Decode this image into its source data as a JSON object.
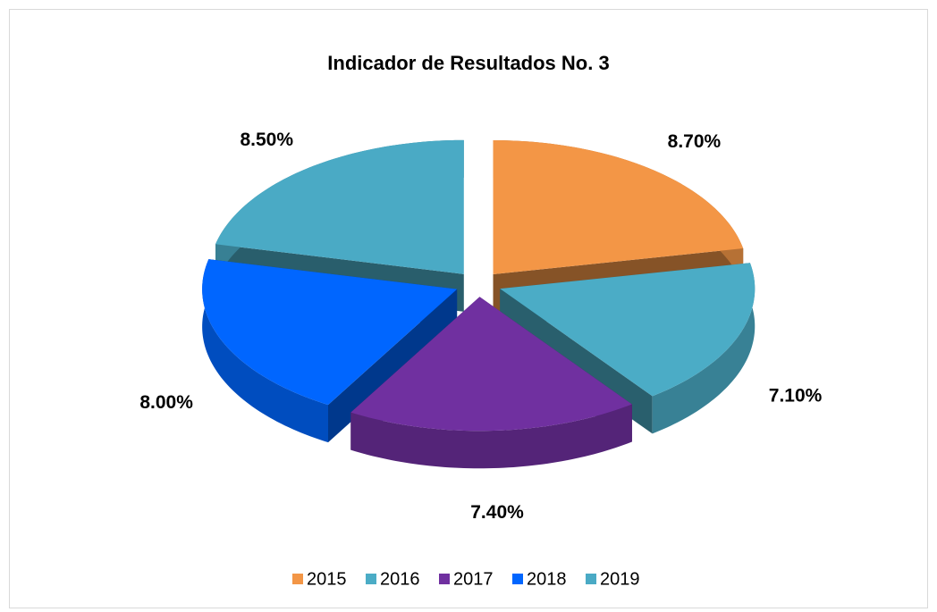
{
  "chart_data": {
    "type": "pie",
    "title": "Indicador de Resultados No. 3",
    "categories": [
      "2015",
      "2016",
      "2017",
      "2018",
      "2019"
    ],
    "values": [
      8.7,
      7.1,
      7.4,
      8.0,
      8.5
    ],
    "value_labels": [
      "8.70%",
      "7.10%",
      "7.40%",
      "8.00%",
      "8.50%"
    ],
    "colors": [
      "#f39646",
      "#4bacc6",
      "#7030a0",
      "#0066ff",
      "#4aaac5"
    ],
    "legend": "bottom"
  }
}
